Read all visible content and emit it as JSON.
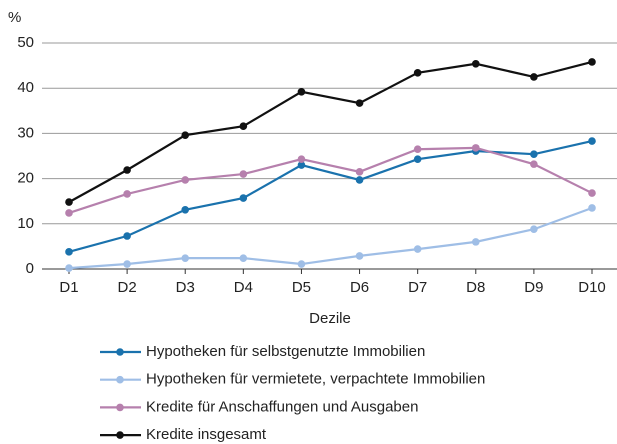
{
  "chart_data": {
    "type": "line",
    "y_label": "%",
    "x_label": "Dezile",
    "categories": [
      "D1",
      "D2",
      "D3",
      "D4",
      "D5",
      "D6",
      "D7",
      "D8",
      "D9",
      "D10"
    ],
    "ylim": [
      0,
      50
    ],
    "yticks": [
      0,
      10,
      20,
      30,
      40,
      50
    ],
    "grid": true,
    "legend": "bottom",
    "series": [
      {
        "name": "Hypotheken für selbstgenutzte Immobilien",
        "color": "#1a72ad",
        "values": [
          3.8,
          7.3,
          13.1,
          15.7,
          23.0,
          19.7,
          24.3,
          26.1,
          25.4,
          28.3
        ]
      },
      {
        "name": "Hypotheken für vermietete, verpachtete Immobilien",
        "color": "#9fbee6",
        "values": [
          0.2,
          1.1,
          2.4,
          2.4,
          1.1,
          2.9,
          4.4,
          6.0,
          8.8,
          13.5
        ]
      },
      {
        "name": "Kredite für Anschaffungen und Ausgaben",
        "color": "#b680ad",
        "values": [
          12.4,
          16.6,
          19.7,
          21.0,
          24.3,
          21.5,
          26.5,
          26.8,
          23.2,
          16.8
        ]
      },
      {
        "name": "Kredite insgesamt",
        "color": "#111111",
        "values": [
          14.8,
          21.9,
          29.6,
          31.6,
          39.2,
          36.7,
          43.4,
          45.4,
          42.5,
          45.8
        ]
      }
    ]
  }
}
